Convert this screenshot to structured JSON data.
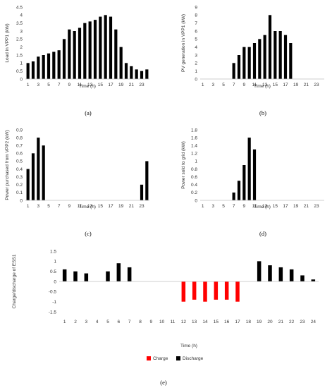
{
  "chart_data": [
    {
      "panel": "a",
      "type": "bar",
      "ylabel": "Load in VPP1 (kW)",
      "xlabel": "Time (h)",
      "ylim": [
        0,
        4.5
      ],
      "yticks": [
        0,
        0.5,
        1,
        1.5,
        2,
        2.5,
        3,
        3.5,
        4,
        4.5
      ],
      "x": [
        1,
        2,
        3,
        4,
        5,
        6,
        7,
        8,
        9,
        10,
        11,
        12,
        13,
        14,
        15,
        16,
        17,
        18,
        19,
        20,
        21,
        22,
        23,
        24
      ],
      "x_tick_labels": [
        "1",
        "3",
        "5",
        "7",
        "9",
        "11",
        "13",
        "15",
        "17",
        "19",
        "21",
        "23"
      ],
      "values": [
        1.0,
        1.1,
        1.4,
        1.5,
        1.6,
        1.7,
        1.8,
        2.5,
        3.1,
        3.0,
        3.2,
        3.5,
        3.6,
        3.7,
        3.9,
        4.0,
        3.9,
        3.1,
        2.0,
        1.0,
        0.8,
        0.6,
        0.5,
        0.6
      ],
      "color": "#000000",
      "grid": false
    },
    {
      "panel": "b",
      "type": "bar",
      "ylabel": "PV generation in VPP1 (kW)",
      "xlabel": "Time (h)",
      "ylim": [
        0,
        9
      ],
      "yticks": [
        0,
        1,
        2,
        3,
        4,
        5,
        6,
        7,
        8,
        9
      ],
      "x": [
        1,
        2,
        3,
        4,
        5,
        6,
        7,
        8,
        9,
        10,
        11,
        12,
        13,
        14,
        15,
        16,
        17,
        18,
        19,
        20,
        21,
        22,
        23,
        24
      ],
      "x_tick_labels": [
        "1",
        "3",
        "5",
        "7",
        "9",
        "11",
        "13",
        "15",
        "17",
        "19",
        "21",
        "23"
      ],
      "values": [
        0,
        0,
        0,
        0,
        0,
        0,
        2.0,
        3.0,
        4.0,
        4.0,
        4.5,
        5.0,
        5.5,
        8.0,
        6.0,
        6.0,
        5.5,
        4.5,
        0,
        0,
        0,
        0,
        0,
        0
      ],
      "color": "#000000",
      "grid": false
    },
    {
      "panel": "c",
      "type": "bar",
      "ylabel": "Power purchased from VPP2 (kW)",
      "xlabel": "Time (h)",
      "ylim": [
        0,
        0.9
      ],
      "yticks": [
        0,
        0.1,
        0.2,
        0.3,
        0.4,
        0.5,
        0.6,
        0.7,
        0.8,
        0.9
      ],
      "x": [
        1,
        2,
        3,
        4,
        5,
        6,
        7,
        8,
        9,
        10,
        11,
        12,
        13,
        14,
        15,
        16,
        17,
        18,
        19,
        20,
        21,
        22,
        23,
        24
      ],
      "x_tick_labels": [
        "1",
        "3",
        "5",
        "7",
        "9",
        "11",
        "13",
        "15",
        "17",
        "19",
        "21",
        "23"
      ],
      "values": [
        0.4,
        0.6,
        0.8,
        0.7,
        0,
        0,
        0,
        0,
        0,
        0,
        0,
        0,
        0,
        0,
        0,
        0,
        0,
        0,
        0,
        0,
        0,
        0,
        0.2,
        0.5
      ],
      "color": "#000000",
      "grid": false
    },
    {
      "panel": "d",
      "type": "bar",
      "ylabel": "Power sold to grid (kW)",
      "xlabel": "Time (h)",
      "ylim": [
        0,
        1.8
      ],
      "yticks": [
        0,
        0.2,
        0.4,
        0.6,
        0.8,
        1,
        1.2,
        1.4,
        1.6,
        1.8
      ],
      "x": [
        1,
        2,
        3,
        4,
        5,
        6,
        7,
        8,
        9,
        10,
        11,
        12,
        13,
        14,
        15,
        16,
        17,
        18,
        19,
        20,
        21,
        22,
        23,
        24
      ],
      "x_tick_labels": [
        "1",
        "3",
        "5",
        "7",
        "9",
        "11",
        "13",
        "15",
        "17",
        "19",
        "21",
        "23"
      ],
      "values": [
        0,
        0,
        0,
        0,
        0,
        0,
        0.2,
        0.5,
        0.9,
        1.6,
        1.3,
        0,
        0,
        0,
        0,
        0,
        0,
        0,
        0,
        0,
        0,
        0,
        0,
        0
      ],
      "color": "#000000",
      "grid": false
    },
    {
      "panel": "e",
      "type": "bar",
      "ylabel": "Charge/discharge of ESS1",
      "xlabel": "Time (h)",
      "ylim": [
        -1.5,
        1.5
      ],
      "yticks": [
        -1.5,
        -1,
        -0.5,
        0,
        0.5,
        1,
        1.5
      ],
      "x": [
        1,
        2,
        3,
        4,
        5,
        6,
        7,
        8,
        9,
        10,
        11,
        12,
        13,
        14,
        15,
        16,
        17,
        18,
        19,
        20,
        21,
        22,
        23,
        24
      ],
      "x_tick_labels": [
        "1",
        "2",
        "3",
        "4",
        "5",
        "6",
        "7",
        "8",
        "9",
        "10",
        "11",
        "12",
        "13",
        "14",
        "15",
        "16",
        "17",
        "18",
        "19",
        "20",
        "21",
        "22",
        "23",
        "24"
      ],
      "series": [
        {
          "name": "Charge",
          "color": "#ff0000",
          "values": [
            0,
            0,
            0,
            0,
            0,
            0,
            0,
            0,
            0,
            0,
            0,
            -1.0,
            -0.9,
            -1.0,
            -0.9,
            -0.9,
            -1.0,
            0,
            0,
            0,
            0,
            0,
            0,
            0
          ]
        },
        {
          "name": "Discharge",
          "color": "#000000",
          "values": [
            0.6,
            0.5,
            0.4,
            0,
            0.5,
            0.9,
            0.7,
            0,
            0,
            0,
            0,
            0,
            0,
            0,
            0,
            0,
            0,
            0,
            1.0,
            0.8,
            0.7,
            0.6,
            0.3,
            0.1
          ]
        }
      ],
      "legend": "bottom-center",
      "grid": false
    }
  ],
  "panel_labels": [
    "(a)",
    "(b)",
    "(c)",
    "(d)",
    "(e)"
  ]
}
